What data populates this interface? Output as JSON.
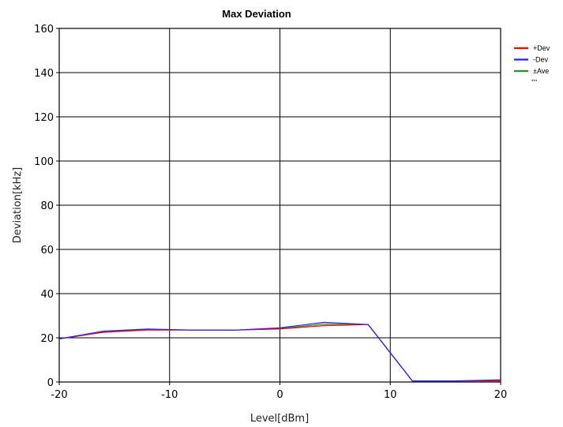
{
  "chart_data": {
    "type": "line",
    "title": "Max Deviation",
    "xlabel": "Level[dBm]",
    "ylabel": "Deviation[kHz]",
    "xlim": [
      -20,
      20
    ],
    "ylim": [
      0,
      160
    ],
    "xticks": [
      -20,
      -10,
      0,
      10,
      20
    ],
    "yticks": [
      0,
      20,
      40,
      60,
      80,
      100,
      120,
      140,
      160
    ],
    "grid": true,
    "legend_position": "top-right",
    "legend_overflow": "...",
    "x": [
      -20,
      -16,
      -12,
      -8,
      -4,
      0,
      4,
      8,
      12,
      16,
      20
    ],
    "series": [
      {
        "name": "+Dev",
        "color": "#ff0000",
        "values": [
          19.5,
          22.5,
          23.5,
          23.5,
          23.5,
          24.0,
          25.5,
          26.0,
          0.5,
          0.5,
          0.5
        ]
      },
      {
        "name": "-Dev",
        "color": "#2020ff",
        "values": [
          19.5,
          23.0,
          24.0,
          23.5,
          23.5,
          24.5,
          27.0,
          26.0,
          0.5,
          0.5,
          1.0
        ]
      },
      {
        "name": "±Ave",
        "color": "#1a9a1a",
        "values": [
          19.5,
          22.7,
          23.7,
          23.5,
          23.5,
          24.2,
          26.2,
          26.0,
          0.5,
          0.5,
          0.7
        ]
      }
    ]
  }
}
